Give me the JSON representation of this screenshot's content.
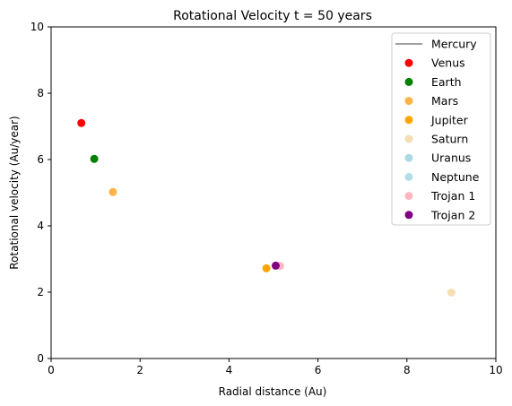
{
  "chart_data": {
    "type": "scatter",
    "title": "Rotational Velocity t = 50 years",
    "xlabel": "Radial distance (Au)",
    "ylabel": "Rotational velocity (Au/year)",
    "xlim": [
      0,
      10
    ],
    "ylim": [
      0,
      10
    ],
    "xticks": [
      0,
      2,
      4,
      6,
      8,
      10
    ],
    "yticks": [
      0,
      2,
      4,
      6,
      8,
      10
    ],
    "grid": false,
    "legend_position": "top-right",
    "series": [
      {
        "name": "Mercury",
        "marker": "line",
        "color": "#808080",
        "points": []
      },
      {
        "name": "Venus",
        "marker": "circle",
        "color": "#ff0000",
        "points": [
          [
            0.68,
            7.1
          ]
        ]
      },
      {
        "name": "Earth",
        "marker": "circle",
        "color": "#008000",
        "points": [
          [
            0.97,
            6.02
          ]
        ]
      },
      {
        "name": "Mars",
        "marker": "circle",
        "color": "#ffb347",
        "points": [
          [
            1.39,
            5.02
          ]
        ]
      },
      {
        "name": "Jupiter",
        "marker": "circle",
        "color": "#ffa500",
        "points": [
          [
            4.84,
            2.72
          ]
        ]
      },
      {
        "name": "Saturn",
        "marker": "circle",
        "color": "#f5deb3",
        "points": [
          [
            9.0,
            1.99
          ]
        ]
      },
      {
        "name": "Uranus",
        "marker": "circle",
        "color": "#add8e6",
        "points": []
      },
      {
        "name": "Neptune",
        "marker": "circle",
        "color": "#b0e0e6",
        "points": []
      },
      {
        "name": "Trojan 1",
        "marker": "circle",
        "color": "#ffb6c1",
        "points": [
          [
            5.15,
            2.79
          ]
        ]
      },
      {
        "name": "Trojan 2",
        "marker": "circle",
        "color": "#800080",
        "points": [
          [
            5.05,
            2.8
          ]
        ]
      }
    ]
  }
}
